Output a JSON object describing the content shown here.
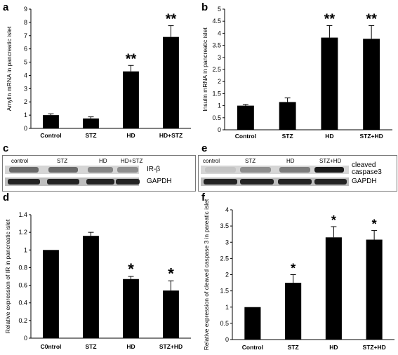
{
  "panel_letters": [
    "a",
    "b",
    "c",
    "d",
    "e",
    "f"
  ],
  "chart_data": [
    {
      "id": "a",
      "type": "bar",
      "ylabel": "Amylin mRNA in pancreatic islet",
      "categories": [
        "Control",
        "STZ",
        "HD",
        "HD+STZ"
      ],
      "values": [
        1.0,
        0.75,
        4.3,
        6.9
      ],
      "errors": [
        0.1,
        0.12,
        0.45,
        0.85
      ],
      "annotations": [
        "",
        "",
        "**",
        "**"
      ],
      "ylim": [
        0,
        9
      ],
      "yticks": [
        "0",
        "1",
        "2",
        "3",
        "4",
        "5",
        "6",
        "7",
        "8",
        "9"
      ],
      "bar_color": "#000000"
    },
    {
      "id": "b",
      "type": "bar",
      "ylabel": "Insulin mRNA in pancreatic islet",
      "categories": [
        "Control",
        "STZ",
        "HD",
        "STZ+HD"
      ],
      "values": [
        1.0,
        1.15,
        3.82,
        3.77
      ],
      "errors": [
        0.05,
        0.17,
        0.5,
        0.55
      ],
      "annotations": [
        "",
        "",
        "**",
        "**"
      ],
      "ylim": [
        0,
        5
      ],
      "yticks": [
        "0",
        "0.5",
        "1",
        "1.5",
        "2",
        "2.5",
        "3",
        "3.5",
        "4",
        "4.5",
        "5"
      ],
      "bar_color": "#000000"
    },
    {
      "id": "d",
      "type": "bar",
      "ylabel": "Relative expression of IR in pancreatic islet",
      "categories": [
        "C0ntrol",
        "STZ",
        "HD",
        "STZ+HD"
      ],
      "values": [
        1.0,
        1.16,
        0.67,
        0.54
      ],
      "errors": [
        0.0,
        0.04,
        0.03,
        0.11
      ],
      "annotations": [
        "",
        "",
        "*",
        "*"
      ],
      "ylim": [
        0,
        1.4
      ],
      "yticks": [
        "0",
        "0.2",
        "0.4",
        "0.6",
        "0.8",
        "1",
        "1.2",
        "1.4"
      ],
      "bar_color": "#000000"
    },
    {
      "id": "f",
      "type": "bar",
      "ylabel": "Relative expression of cleaved caspase 3 in pareatic islet",
      "categories": [
        "Control",
        "STZ",
        "HD",
        "STZ+HD"
      ],
      "values": [
        1.0,
        1.75,
        3.15,
        3.08
      ],
      "errors": [
        0.0,
        0.25,
        0.33,
        0.28
      ],
      "annotations": [
        "",
        "*",
        "*",
        "*"
      ],
      "ylim": [
        0,
        4
      ],
      "yticks": [
        "0",
        "0.5",
        "1",
        "1.5",
        "2",
        "2.5",
        "3",
        "3.5",
        "4"
      ],
      "bar_color": "#000000"
    }
  ],
  "blot_c": {
    "lanes": [
      "control",
      "STZ",
      "HD",
      "HD+STZ"
    ],
    "rows": [
      "IR-β",
      "GAPDH"
    ],
    "ir_intensity": [
      0.55,
      0.55,
      0.4,
      0.35
    ]
  },
  "blot_e": {
    "lanes": [
      "control",
      "STZ",
      "HD",
      "STZ+HD"
    ],
    "rows": [
      "cleaved caspase3",
      "GAPDH"
    ],
    "casp_intensity": [
      0.05,
      0.35,
      0.45,
      1.0
    ]
  }
}
